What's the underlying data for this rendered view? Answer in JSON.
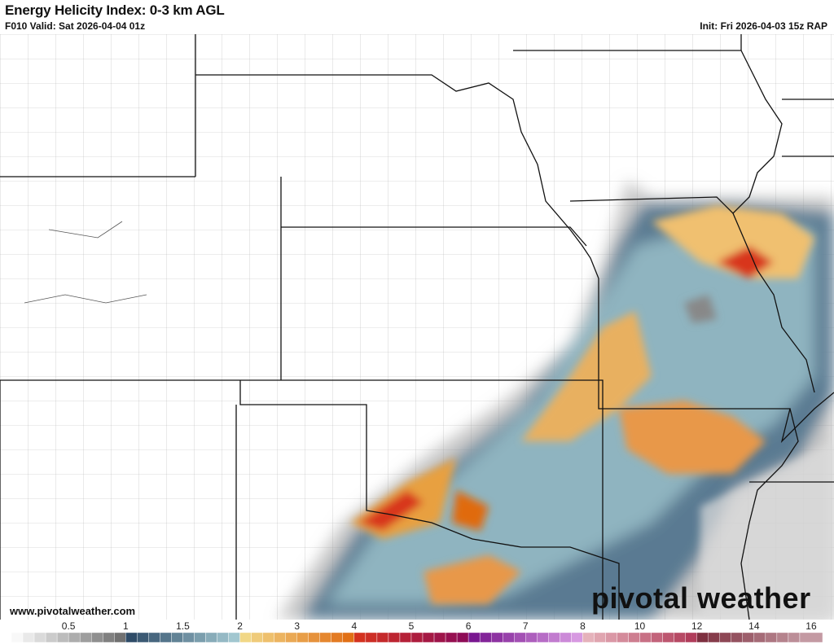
{
  "header": {
    "title": "Energy Helicity Index: 0-3 km AGL",
    "valid": "F010 Valid: Sat 2026-04-04 01z",
    "init": "Init: Fri 2026-04-03 15z RAP"
  },
  "footer": {
    "website": "www.pivotalweather.com",
    "brand": "pivotal weather"
  },
  "colorbar": {
    "ticks": [
      "0.5",
      "1",
      "1.5",
      "2",
      "3",
      "4",
      "5",
      "6",
      "7",
      "8",
      "10",
      "12",
      "14",
      "16"
    ],
    "stops": [
      {
        "v": 0,
        "c": "#ffffff"
      },
      {
        "v": 1,
        "c": "#6a6a6a"
      },
      {
        "v": 1.05,
        "c": "#2f4c68"
      },
      {
        "v": 2,
        "c": "#a8ced6"
      },
      {
        "v": 2.01,
        "c": "#f2dc8c"
      },
      {
        "v": 4,
        "c": "#e06a10"
      },
      {
        "v": 4.01,
        "c": "#d8341c"
      },
      {
        "v": 6,
        "c": "#8a0a5a"
      },
      {
        "v": 6.01,
        "c": "#74108c"
      },
      {
        "v": 8,
        "c": "#dca0e6"
      },
      {
        "v": 8.01,
        "c": "#e8b8c0"
      },
      {
        "v": 11.9,
        "c": "#b03a58"
      },
      {
        "v": 12,
        "c": "#7a2a3a"
      },
      {
        "v": 16,
        "c": "#c8a0a8"
      }
    ]
  }
}
